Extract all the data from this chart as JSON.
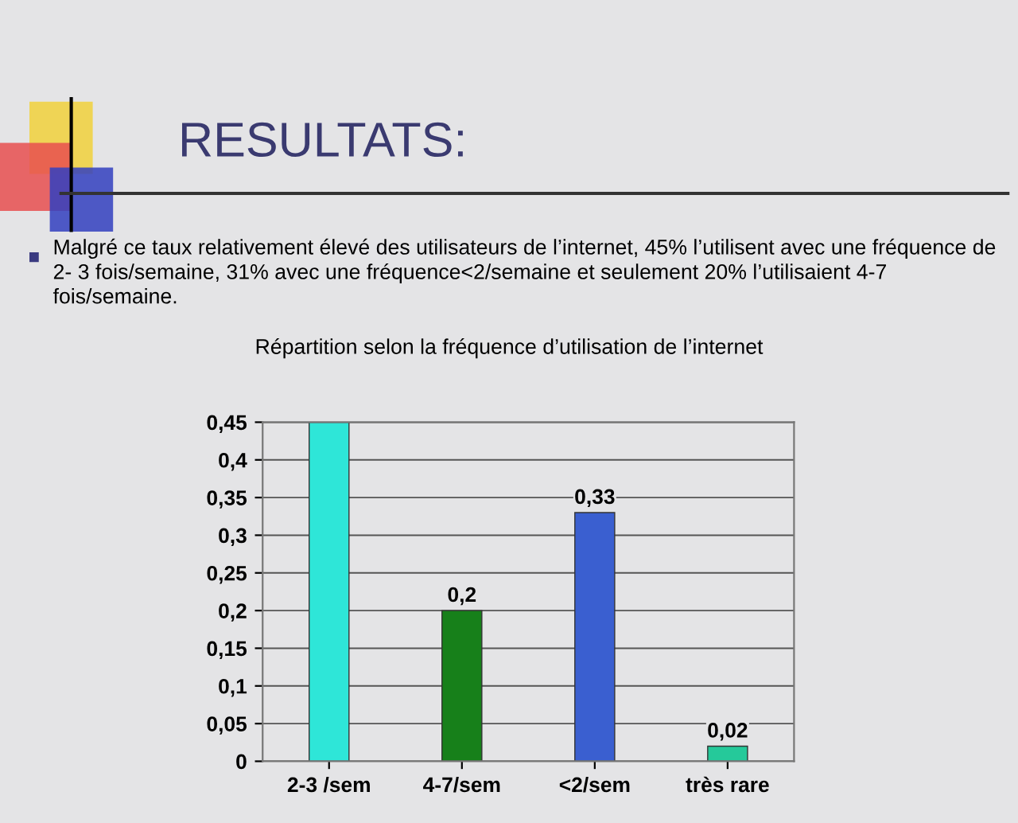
{
  "chart_data": {
    "type": "bar",
    "title": "RESULTATS:",
    "subtitle": "Malgré ce taux relativement élevé des utilisateurs de l’internet, 45% l’utilisent avec une fréquence de 2- 3 fois/semaine, 31% avec une fréquence<2/semaine et seulement 20% l’utilisaient 4-7 fois/semaine.",
    "annotations": [
      "Répartition selon la fréquence d’utilisation de l’internet"
    ],
    "categories": [
      "2-3 /sem",
      "4-7/sem",
      "<2/sem",
      "très rare"
    ],
    "values": [
      0.45,
      0.2,
      0.33,
      0.02
    ],
    "colors": [
      "#2ee6d8",
      "#17801a",
      "#3a5fd0",
      "#25c99a"
    ],
    "value_labels": [
      null,
      "0,2",
      "0,33",
      "0,02"
    ],
    "ylim": [
      0,
      0.45
    ],
    "yticks": [
      0,
      {
        "value": 0.05,
        "label": "0,05"
      },
      {
        "value": 0.1,
        "label": "0,1"
      },
      {
        "value": 0.15,
        "label": "0,15"
      },
      {
        "value": 0.2,
        "label": "0,2"
      },
      {
        "value": 0.25,
        "label": "0,25"
      },
      {
        "value": 0.3,
        "label": "0,3"
      },
      {
        "value": 0.35,
        "label": "0,35"
      },
      {
        "value": 0.4,
        "label": "0,4"
      },
      {
        "value": 0.45,
        "label": "0,45"
      }
    ],
    "grid": "y",
    "legend": false
  }
}
